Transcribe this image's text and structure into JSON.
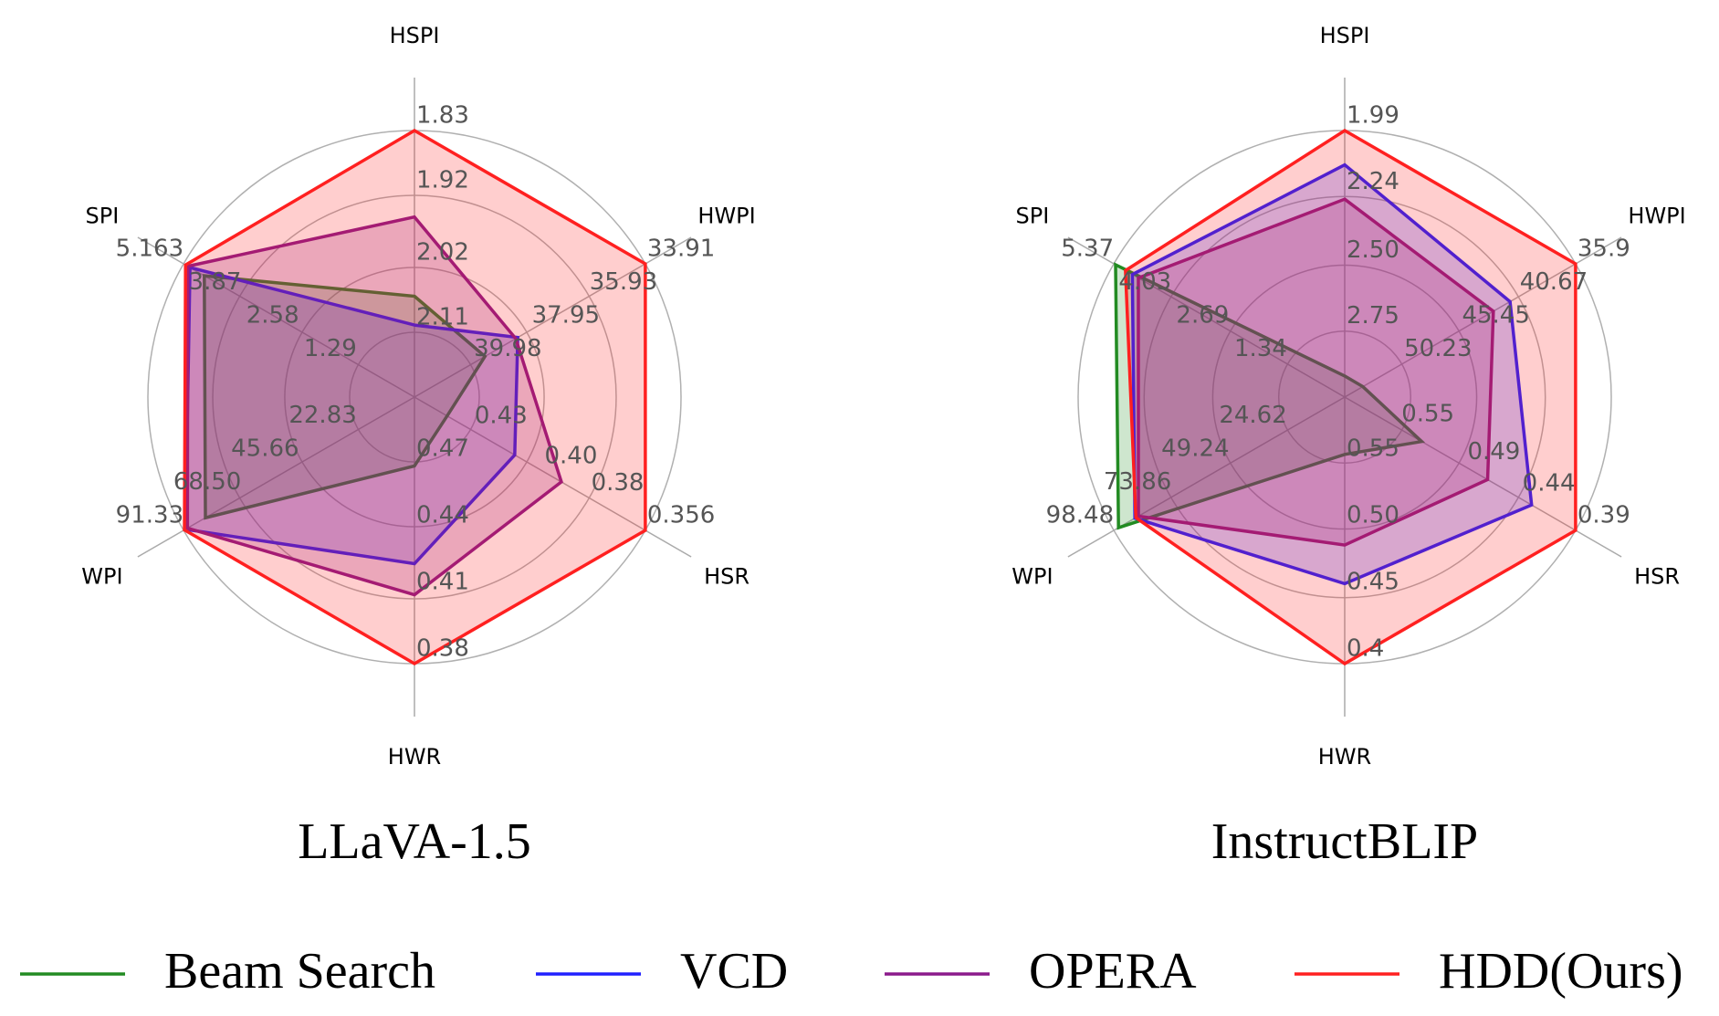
{
  "chart_data": [
    {
      "type": "radar",
      "title": "LLaVA-1.5",
      "axes": [
        {
          "label": "HSPI",
          "lim": [
            2.2,
            1.83
          ],
          "ticks": [
            2.11,
            2.02,
            1.92,
            1.83
          ]
        },
        {
          "label": "HWPI",
          "lim": [
            42.0,
            33.91
          ],
          "ticks": [
            39.98,
            37.95,
            35.93,
            33.91
          ]
        },
        {
          "label": "HSR",
          "lim": [
            0.455,
            0.356
          ],
          "ticks": [
            0.43,
            {
              "value": 0.4,
              "label": "0.40"
            },
            0.38,
            0.356
          ]
        },
        {
          "label": "HWR",
          "lim": [
            0.5,
            0.38
          ],
          "ticks": [
            0.47,
            0.44,
            0.41,
            0.38
          ]
        },
        {
          "label": "WPI",
          "lim": [
            0,
            91.33
          ],
          "ticks": [
            22.83,
            45.66,
            {
              "value": 68.5,
              "label": "68.50"
            },
            91.33
          ]
        },
        {
          "label": "SPI",
          "lim": [
            0,
            5.163
          ],
          "ticks": [
            1.29,
            2.58,
            3.87,
            5.163
          ]
        }
      ],
      "series": [
        {
          "name": "Beam Search",
          "color": "#228b22",
          "values": [
            2.06,
            39.53,
            0.441,
            0.469,
            82.7,
            4.7
          ]
        },
        {
          "name": "VCD",
          "color": "#2020ff",
          "values": [
            2.1,
            38.38,
            0.412,
            0.425,
            90.6,
            5.02
          ]
        },
        {
          "name": "OPERA",
          "color": "#8b1a8b",
          "values": [
            1.95,
            38.45,
            0.392,
            0.411,
            89.8,
            5.07
          ]
        },
        {
          "name": "HDD(Ours)",
          "color": "#ff2020",
          "values": [
            1.83,
            33.91,
            0.356,
            0.38,
            91.0,
            5.12
          ]
        }
      ]
    },
    {
      "type": "radar",
      "title": "InstructBLIP",
      "axes": [
        {
          "label": "HSPI",
          "lim": [
            3.0,
            1.99
          ],
          "ticks": [
            2.75,
            {
              "value": 2.5,
              "label": "2.50"
            },
            2.24,
            1.99
          ]
        },
        {
          "label": "HWPI",
          "lim": [
            55.0,
            35.9
          ],
          "ticks": [
            50.23,
            45.45,
            40.67,
            35.9
          ]
        },
        {
          "label": "HSR",
          "lim": [
            0.6,
            0.39
          ],
          "ticks": [
            0.55,
            0.49,
            0.44,
            0.39
          ]
        },
        {
          "label": "HWR",
          "lim": [
            0.6,
            0.4
          ],
          "ticks": [
            0.55,
            {
              "value": 0.5,
              "label": "0.50"
            },
            0.45,
            0.4
          ]
        },
        {
          "label": "WPI",
          "lim": [
            0,
            98.48
          ],
          "ticks": [
            24.62,
            49.24,
            73.86,
            98.48
          ]
        },
        {
          "label": "SPI",
          "lim": [
            0,
            5.37
          ],
          "ticks": [
            1.34,
            2.69,
            4.03,
            5.37
          ]
        }
      ],
      "series": [
        {
          "name": "Beam Search",
          "color": "#228b22",
          "values": [
            2.92,
            53.5,
            0.53,
            0.557,
            96.5,
            5.33
          ]
        },
        {
          "name": "VCD",
          "color": "#2020ff",
          "values": [
            2.12,
            41.32,
            0.43,
            0.46,
            89.5,
            4.94
          ]
        },
        {
          "name": "OPERA",
          "color": "#8b1a8b",
          "values": [
            2.25,
            42.7,
            0.47,
            0.489,
            88.0,
            4.8
          ]
        },
        {
          "name": "HDD(Ours)",
          "color": "#ff2020",
          "values": [
            1.99,
            35.9,
            0.39,
            0.4,
            89.1,
            5.1
          ]
        }
      ]
    }
  ]
}
